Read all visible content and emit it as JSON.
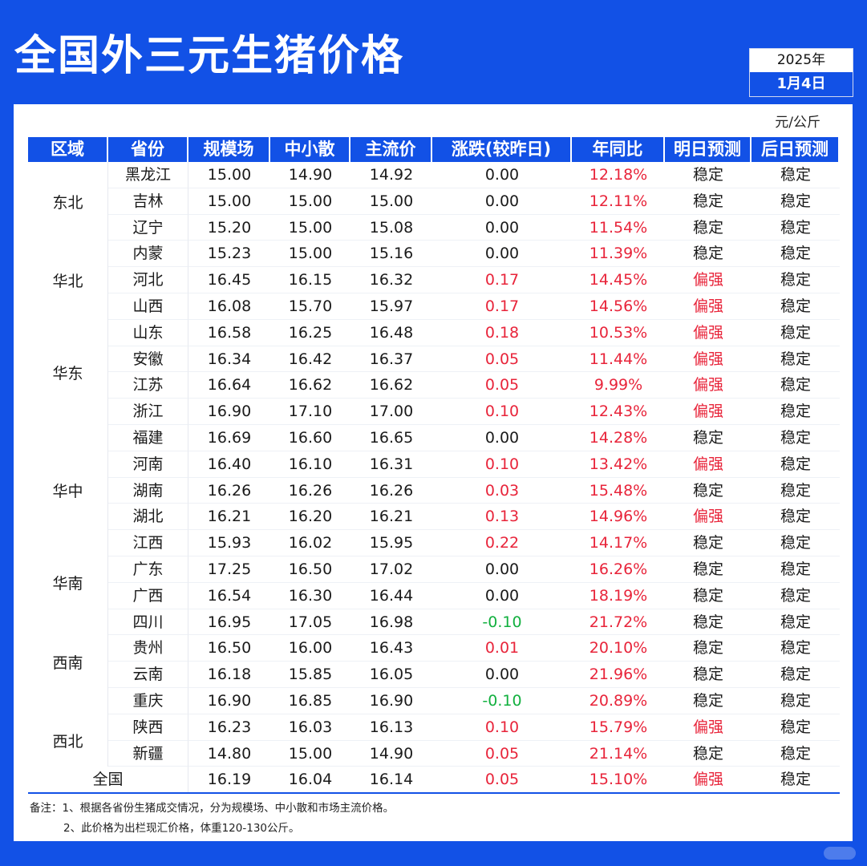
{
  "title": "全国外三元生猪价格",
  "date": {
    "year": "2025年",
    "day": "1月4日"
  },
  "unit": "元/公斤",
  "headers": [
    "区域",
    "省份",
    "规模场",
    "中小散",
    "主流价",
    "涨跌(较昨日)",
    "年同比",
    "明日预测",
    "后日预测"
  ],
  "regions": [
    {
      "name": "东北",
      "span": 3
    },
    {
      "name": "华北",
      "span": 3
    },
    {
      "name": "华东",
      "span": 4
    },
    {
      "name": "华中",
      "span": 5
    },
    {
      "name": "华南",
      "span": 2
    },
    {
      "name": "西南",
      "span": 4
    },
    {
      "name": "西北",
      "span": 2
    }
  ],
  "rows": [
    [
      "黑龙江",
      "15.00",
      "14.90",
      "14.92",
      "0.00",
      "12.18%",
      "稳定",
      "稳定"
    ],
    [
      "吉林",
      "15.00",
      "15.00",
      "15.00",
      "0.00",
      "12.11%",
      "稳定",
      "稳定"
    ],
    [
      "辽宁",
      "15.20",
      "15.00",
      "15.08",
      "0.00",
      "11.54%",
      "稳定",
      "稳定"
    ],
    [
      "内蒙",
      "15.23",
      "15.00",
      "15.16",
      "0.00",
      "11.39%",
      "稳定",
      "稳定"
    ],
    [
      "河北",
      "16.45",
      "16.15",
      "16.32",
      "0.17",
      "14.45%",
      "偏强",
      "稳定"
    ],
    [
      "山西",
      "16.08",
      "15.70",
      "15.97",
      "0.17",
      "14.56%",
      "偏强",
      "稳定"
    ],
    [
      "山东",
      "16.58",
      "16.25",
      "16.48",
      "0.18",
      "10.53%",
      "偏强",
      "稳定"
    ],
    [
      "安徽",
      "16.34",
      "16.42",
      "16.37",
      "0.05",
      "11.44%",
      "偏强",
      "稳定"
    ],
    [
      "江苏",
      "16.64",
      "16.62",
      "16.62",
      "0.05",
      "9.99%",
      "偏强",
      "稳定"
    ],
    [
      "浙江",
      "16.90",
      "17.10",
      "17.00",
      "0.10",
      "12.43%",
      "偏强",
      "稳定"
    ],
    [
      "福建",
      "16.69",
      "16.60",
      "16.65",
      "0.00",
      "14.28%",
      "稳定",
      "稳定"
    ],
    [
      "河南",
      "16.40",
      "16.10",
      "16.31",
      "0.10",
      "13.42%",
      "偏强",
      "稳定"
    ],
    [
      "湖南",
      "16.26",
      "16.26",
      "16.26",
      "0.03",
      "15.48%",
      "稳定",
      "稳定"
    ],
    [
      "湖北",
      "16.21",
      "16.20",
      "16.21",
      "0.13",
      "14.96%",
      "偏强",
      "稳定"
    ],
    [
      "江西",
      "15.93",
      "16.02",
      "15.95",
      "0.22",
      "14.17%",
      "稳定",
      "稳定"
    ],
    [
      "广东",
      "17.25",
      "16.50",
      "17.02",
      "0.00",
      "16.26%",
      "稳定",
      "稳定"
    ],
    [
      "广西",
      "16.54",
      "16.30",
      "16.44",
      "0.00",
      "18.19%",
      "稳定",
      "稳定"
    ],
    [
      "四川",
      "16.95",
      "17.05",
      "16.98",
      "-0.10",
      "21.72%",
      "稳定",
      "稳定"
    ],
    [
      "贵州",
      "16.50",
      "16.00",
      "16.43",
      "0.01",
      "20.10%",
      "稳定",
      "稳定"
    ],
    [
      "云南",
      "16.18",
      "15.85",
      "16.05",
      "0.00",
      "21.96%",
      "稳定",
      "稳定"
    ],
    [
      "重庆",
      "16.90",
      "16.85",
      "16.90",
      "-0.10",
      "20.89%",
      "稳定",
      "稳定"
    ],
    [
      "陕西",
      "16.23",
      "16.03",
      "16.13",
      "0.10",
      "15.79%",
      "偏强",
      "稳定"
    ],
    [
      "新疆",
      "14.80",
      "15.00",
      "14.90",
      "0.05",
      "21.14%",
      "稳定",
      "稳定"
    ]
  ],
  "total": [
    "全国",
    "16.19",
    "16.04",
    "16.14",
    "0.05",
    "15.10%",
    "偏强",
    "稳定"
  ],
  "notes": [
    "备注：1、根据各省份生猪成交情况，分为规模场、中小散和市场主流价格。",
    "2、此价格为出栏现汇价格，体重120-130公斤。"
  ],
  "colors": {
    "primary": "#1251e6",
    "up": "#e8243a",
    "down": "#12b03f"
  }
}
